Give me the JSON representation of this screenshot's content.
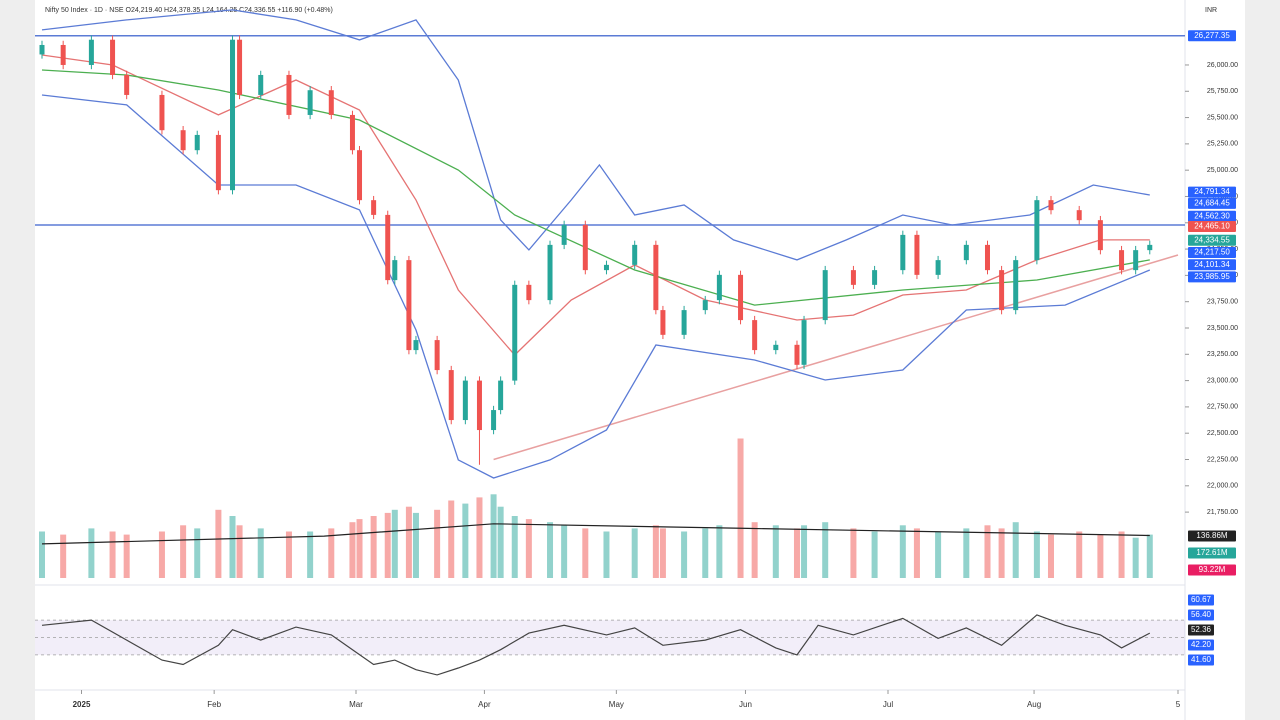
{
  "chart_data": {
    "type": "candlestick",
    "title": "Nifty 50 Index · 1D · NSE  O24,219.40 H24,378.35 L24,164.25 C24,336.55 +116.90 (+0.48%)",
    "currency": "INR",
    "up_color": "#26a69a",
    "down_color": "#ef5350",
    "x": [
      0,
      3,
      7,
      10,
      12,
      17,
      20,
      22,
      25,
      27,
      28,
      31,
      35,
      38,
      41,
      44,
      45,
      47,
      49,
      50,
      52,
      53,
      56,
      58,
      60,
      62,
      64,
      65,
      67,
      69,
      72,
      74,
      77,
      80,
      84,
      87,
      88,
      91,
      94,
      96,
      99,
      101,
      104,
      107,
      108,
      111,
      115,
      118,
      122,
      124,
      127,
      131,
      134,
      136,
      138,
      141,
      143,
      147,
      150,
      153,
      155,
      157
    ],
    "open": [
      26100,
      26190,
      26000,
      26240,
      25905,
      25715,
      25380,
      25190,
      25335,
      24810,
      26240,
      25715,
      25905,
      25525,
      25760,
      25525,
      25190,
      24715,
      24575,
      23955,
      24145,
      23290,
      23385,
      23100,
      22625,
      23000,
      22530,
      22720,
      23000,
      23910,
      23765,
      24290,
      24480,
      24050,
      24100,
      24290,
      23670,
      23435,
      23670,
      23765,
      24005,
      23575,
      23290,
      23340,
      23150,
      23575,
      24050,
      23910,
      24050,
      24385,
      24005,
      24145,
      24290,
      24050,
      23670,
      24145,
      24715,
      24620,
      24525,
      24240,
      24050,
      24240
    ],
    "high": [
      26230,
      26230,
      26280,
      26280,
      25945,
      25755,
      25420,
      25375,
      25375,
      26280,
      26280,
      25945,
      25945,
      25800,
      25800,
      25565,
      25230,
      24755,
      24615,
      24185,
      24185,
      23425,
      23425,
      23140,
      23040,
      23040,
      22760,
      23040,
      23950,
      23950,
      24330,
      24520,
      24520,
      24140,
      24330,
      24330,
      23710,
      23710,
      23805,
      24045,
      24045,
      23615,
      23380,
      23380,
      23615,
      24090,
      24090,
      24090,
      24425,
      24425,
      24185,
      24330,
      24330,
      24090,
      24185,
      24755,
      24755,
      24660,
      24565,
      24280,
      24280,
      24330
    ],
    "low": [
      26060,
      25960,
      25960,
      25865,
      25675,
      25340,
      25150,
      25150,
      24770,
      24770,
      25675,
      25675,
      25485,
      25485,
      25485,
      25150,
      24675,
      24535,
      23915,
      23915,
      23250,
      23250,
      23060,
      22585,
      22585,
      22200,
      22490,
      22680,
      22960,
      23725,
      23725,
      24250,
      24010,
      24010,
      24060,
      23630,
      23395,
      23395,
      23630,
      23725,
      23535,
      23250,
      23250,
      23110,
      23110,
      23535,
      23870,
      23870,
      24010,
      23965,
      23965,
      24105,
      24010,
      23630,
      23630,
      24105,
      24580,
      24485,
      24200,
      24010,
      24010,
      24200
    ],
    "close": [
      26190,
      26000,
      26240,
      25905,
      25715,
      25380,
      25190,
      25335,
      24810,
      26240,
      25715,
      25905,
      25525,
      25760,
      25525,
      25190,
      24715,
      24575,
      23955,
      24145,
      23290,
      23385,
      23100,
      22625,
      23000,
      22530,
      22720,
      23000,
      23910,
      23765,
      24290,
      24480,
      24050,
      24100,
      24290,
      23670,
      23435,
      23670,
      23765,
      24005,
      23575,
      23290,
      23340,
      23150,
      23575,
      24050,
      23910,
      24050,
      24385,
      24005,
      24145,
      24290,
      24050,
      23670,
      24145,
      24715,
      24620,
      24525,
      24240,
      24050,
      24240,
      24290
    ],
    "xlim": [
      0,
      161
    ],
    "xticks": [
      {
        "value": 5.6,
        "label": "2025"
      },
      {
        "value": 24.4,
        "label": "Feb"
      },
      {
        "value": 44.5,
        "label": "Mar"
      },
      {
        "value": 62.7,
        "label": "Apr"
      },
      {
        "value": 81.4,
        "label": "May"
      },
      {
        "value": 99.7,
        "label": "Jun"
      },
      {
        "value": 119.9,
        "label": "Jul"
      },
      {
        "value": 140.6,
        "label": "Aug"
      },
      {
        "value": 161,
        "label": "5"
      }
    ],
    "ylim": [
      21675,
      26570
    ],
    "yticks": [
      {
        "value": 21750,
        "label": "21,750.00"
      },
      {
        "value": 22000,
        "label": "22,000.00"
      },
      {
        "value": 22250,
        "label": "22,250.00"
      },
      {
        "value": 22500,
        "label": "22,500.00"
      },
      {
        "value": 22750,
        "label": "22,750.00"
      },
      {
        "value": 23000,
        "label": "23,000.00"
      },
      {
        "value": 23250,
        "label": "23,250.00"
      },
      {
        "value": 23500,
        "label": "23,500.00"
      },
      {
        "value": 23750,
        "label": "23,750.00"
      },
      {
        "value": 24000,
        "label": "24,000.00"
      },
      {
        "value": 24250,
        "label": "24,250.00"
      },
      {
        "value": 24500,
        "label": "24,500.00"
      },
      {
        "value": 24750,
        "label": "24,750.00"
      },
      {
        "value": 25000,
        "label": "25,000.00"
      },
      {
        "value": 25250,
        "label": "25,250.00"
      },
      {
        "value": 25500,
        "label": "25,500.00"
      },
      {
        "value": 25750,
        "label": "25,750.00"
      },
      {
        "value": 26000,
        "label": "26,000.00"
      }
    ],
    "indicators": [
      {
        "color": "#5b7bd5",
        "x": [
          0,
          12,
          27,
          36,
          45,
          53,
          59,
          65,
          69,
          75,
          79,
          84,
          91,
          98,
          107,
          114,
          122,
          129,
          140,
          149,
          157
        ],
        "values": [
          26333,
          26428,
          26523,
          26428,
          26238,
          26428,
          25857,
          24527,
          24242,
          24717,
          25050,
          24574,
          24669,
          24337,
          24147,
          24337,
          24574,
          24479,
          24574,
          24859,
          24764
        ]
      },
      {
        "color": "#5b7bd5",
        "x": [
          0,
          12,
          25,
          36,
          45,
          53,
          59,
          64,
          72,
          80,
          87,
          101,
          111,
          122,
          131,
          145,
          157
        ],
        "values": [
          25715,
          25620,
          24859,
          24859,
          24622,
          23481,
          22246,
          22074,
          22246,
          22530,
          23338,
          23196,
          23006,
          23101,
          23671,
          23718,
          24051
        ]
      },
      {
        "color": "#e57373",
        "x": [
          0,
          10,
          25,
          36,
          45,
          53,
          59,
          67,
          75,
          84,
          94,
          107,
          115,
          122,
          131,
          141,
          150,
          157
        ],
        "values": [
          26095,
          26000,
          25525,
          25857,
          25572,
          24717,
          23861,
          23243,
          23766,
          24099,
          23766,
          23576,
          23623,
          23814,
          23861,
          24147,
          24337,
          24337
        ]
      },
      {
        "color": "#4caf50",
        "x": [
          0,
          12,
          25,
          45,
          59,
          67,
          84,
          101,
          122,
          141,
          157
        ],
        "values": [
          25952,
          25905,
          25762,
          25477,
          25002,
          24574,
          24051,
          23718,
          23861,
          23956,
          24147
        ]
      }
    ],
    "levels": [
      {
        "value": 26277.35,
        "color": "#5b7bd5"
      },
      {
        "value": 24479,
        "color": "#5b7bd5"
      }
    ],
    "trendline": {
      "color": "#e8a0a0",
      "x": [
        64,
        161
      ],
      "values": [
        22250,
        24194
      ]
    },
    "price_tags": [
      {
        "value": 26277.35,
        "label": "26,277.35",
        "color": "#2962ff"
      },
      {
        "value": 24791.34,
        "label": "24,791.34",
        "color": "#2962ff"
      },
      {
        "value": 24684.45,
        "label": "24,684.45",
        "color": "#2962ff"
      },
      {
        "value": 24562.3,
        "label": "24,562.30",
        "color": "#2962ff"
      },
      {
        "value": 24465.1,
        "label": "24,465.10",
        "color": "#ef5350"
      },
      {
        "value": 24334.55,
        "label": "24,334.55",
        "color": "#26a69a"
      },
      {
        "value": 24217.5,
        "label": "24,217.50",
        "color": "#2962ff"
      },
      {
        "value": 24101.34,
        "label": "24,101.34",
        "color": "#2962ff"
      },
      {
        "value": 23985.95,
        "label": "23,985.95",
        "color": "#2962ff"
      }
    ],
    "volume": {
      "ylim": [
        0,
        500
      ],
      "values": [
        150,
        140,
        160,
        150,
        140,
        150,
        170,
        160,
        220,
        200,
        170,
        160,
        150,
        150,
        160,
        180,
        190,
        200,
        210,
        220,
        230,
        210,
        220,
        250,
        240,
        260,
        270,
        230,
        200,
        190,
        180,
        170,
        160,
        150,
        160,
        170,
        160,
        150,
        160,
        170,
        450,
        180,
        170,
        160,
        170,
        180,
        160,
        150,
        170,
        160,
        150,
        160,
        170,
        160,
        180,
        150,
        140,
        150,
        140,
        150,
        130,
        140
      ],
      "ma": {
        "color": "#222222",
        "x": [
          0,
          40,
          64,
          100,
          157
        ],
        "values": [
          110,
          135,
          175,
          160,
          137
        ]
      },
      "tags": [
        {
          "value": 136.86,
          "label": "136.86M",
          "color": "#222222"
        },
        {
          "value": 172.61,
          "label": "172.61M",
          "color": "#26a69a"
        },
        {
          "value": 93.22,
          "label": "93.22M",
          "color": "#e91e63"
        }
      ]
    },
    "rsi": {
      "ylim": [
        0,
        100
      ],
      "band": [
        30,
        70
      ],
      "levels": [
        30,
        50,
        70
      ],
      "color": "#444444",
      "x": [
        0,
        7,
        12,
        17,
        20,
        25,
        27,
        31,
        36,
        41,
        44,
        47,
        50,
        53,
        56,
        59,
        62,
        65,
        69,
        74,
        80,
        84,
        88,
        94,
        99,
        104,
        107,
        110,
        115,
        122,
        127,
        131,
        136,
        141,
        145,
        150,
        153,
        157
      ],
      "values": [
        64,
        70,
        47,
        24,
        19,
        41,
        59,
        47,
        62,
        53,
        36,
        19,
        24,
        13,
        7,
        15,
        24,
        36,
        55,
        64,
        53,
        61,
        41,
        47,
        59,
        38,
        30,
        64,
        53,
        72,
        49,
        61,
        41,
        76,
        64,
        53,
        38,
        55
      ],
      "tags": [
        {
          "value": 60.67,
          "label": "60.67",
          "color": "#2962ff"
        },
        {
          "value": 56.4,
          "label": "56.40",
          "color": "#2962ff"
        },
        {
          "value": 52.36,
          "label": "52.36",
          "color": "#222222"
        },
        {
          "value": 42.2,
          "label": "42.20",
          "color": "#2962ff"
        },
        {
          "value": 41.6,
          "label": "41.60",
          "color": "#2962ff"
        }
      ]
    }
  }
}
